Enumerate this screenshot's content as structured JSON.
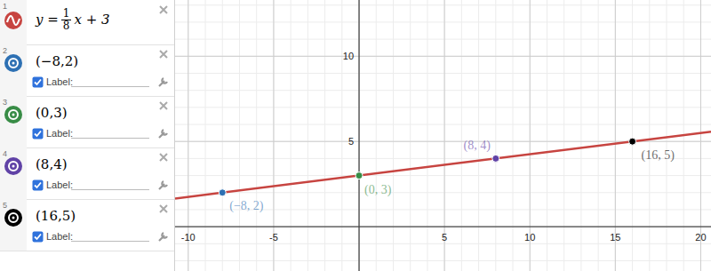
{
  "chart_data": {
    "type": "line",
    "xlim": [
      -10.77,
      20.6
    ],
    "ylim": [
      -2.6,
      13.3
    ],
    "xticks": [
      -10,
      -5,
      5,
      10,
      15,
      20
    ],
    "yticks": [
      5,
      10
    ],
    "grid": true,
    "series": [
      {
        "type": "line",
        "color": "#c74440",
        "x": [
          -10.77,
          20.6
        ],
        "values": [
          1.654,
          5.575
        ]
      },
      {
        "type": "scatter",
        "marker": "circle",
        "colors": [
          "#2d70b3",
          "#388c46",
          "#6042a6",
          "#000000"
        ],
        "x": [
          -8,
          0,
          8,
          16
        ],
        "values": [
          2,
          3,
          4,
          5
        ],
        "value_labels": [
          "(−8, 2)",
          "(0, 3)",
          "(8, 4)",
          "(16, 5)"
        ]
      }
    ]
  },
  "panel": {
    "expressions": [
      {
        "number": 1,
        "equation": {
          "lhs": "y =",
          "numerator": "1",
          "denominator": "8",
          "rhs": "x + 3"
        }
      },
      {
        "number": 2,
        "text": "(−8,2)",
        "label": "Label:"
      },
      {
        "number": 3,
        "text": "(0,3)",
        "label": "Label:"
      },
      {
        "number": 4,
        "text": "(8,4)",
        "label": "Label:"
      },
      {
        "number": 5,
        "text": "(16,5)",
        "label": "Label:"
      }
    ]
  }
}
